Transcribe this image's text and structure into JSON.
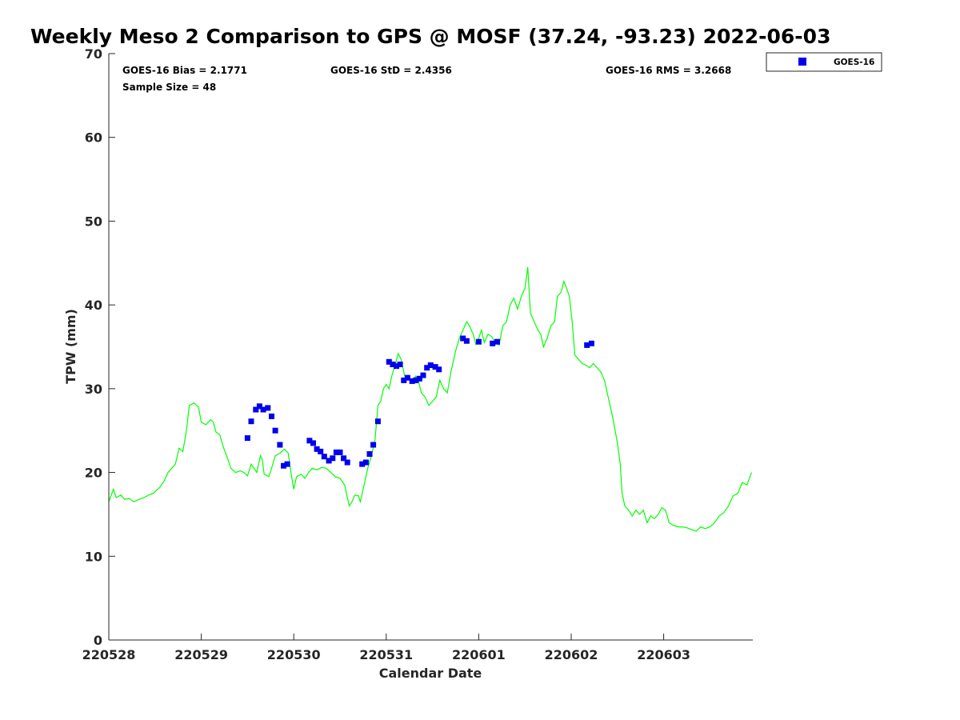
{
  "chart_data": {
    "type": "scatter",
    "title": "Weekly Meso 2 Comparison to GPS @ MOSF (37.24, -93.23) 2022-06-03",
    "xlabel": "Calendar Date",
    "ylabel": "TPW (mm)",
    "xlim": [
      0,
      6.95
    ],
    "ylim": [
      0,
      70
    ],
    "x_unit": "days since 220528",
    "x_ticks": [
      {
        "value": 0,
        "label": "220528"
      },
      {
        "value": 1,
        "label": "220529"
      },
      {
        "value": 2,
        "label": "220530"
      },
      {
        "value": 3,
        "label": "220531"
      },
      {
        "value": 4,
        "label": "220601"
      },
      {
        "value": 5,
        "label": "220602"
      },
      {
        "value": 6,
        "label": "220603"
      }
    ],
    "y_ticks": [
      0,
      10,
      20,
      30,
      40,
      50,
      60,
      70
    ],
    "grid": false,
    "legend": {
      "position": "outside-top-right",
      "entries": [
        "GOES-16"
      ]
    },
    "stats": {
      "bias": "GOES-16 Bias = 2.1771",
      "std": "GOES-16 StD = 2.4356",
      "rms": "GOES-16 RMS = 3.2668",
      "sample_size": "Sample Size = 48"
    },
    "series": [
      {
        "name": "GPS",
        "kind": "line",
        "color": "#00ff00",
        "points": [
          [
            0.0,
            16.5
          ],
          [
            0.05,
            18.0
          ],
          [
            0.08,
            17.0
          ],
          [
            0.13,
            17.3
          ],
          [
            0.17,
            16.8
          ],
          [
            0.22,
            16.9
          ],
          [
            0.27,
            16.5
          ],
          [
            0.33,
            16.8
          ],
          [
            0.38,
            17.0
          ],
          [
            0.43,
            17.3
          ],
          [
            0.48,
            17.5
          ],
          [
            0.55,
            18.2
          ],
          [
            0.6,
            19.0
          ],
          [
            0.64,
            20.0
          ],
          [
            0.68,
            20.5
          ],
          [
            0.72,
            21.0
          ],
          [
            0.76,
            22.9
          ],
          [
            0.8,
            22.5
          ],
          [
            0.84,
            25.0
          ],
          [
            0.87,
            28.0
          ],
          [
            0.92,
            28.3
          ],
          [
            0.97,
            27.8
          ],
          [
            1.0,
            26.0
          ],
          [
            1.05,
            25.7
          ],
          [
            1.1,
            26.3
          ],
          [
            1.13,
            26.0
          ],
          [
            1.16,
            24.8
          ],
          [
            1.2,
            24.5
          ],
          [
            1.24,
            23.0
          ],
          [
            1.28,
            21.8
          ],
          [
            1.32,
            20.5
          ],
          [
            1.37,
            20.0
          ],
          [
            1.42,
            20.2
          ],
          [
            1.46,
            20.0
          ],
          [
            1.5,
            19.6
          ],
          [
            1.54,
            21.0
          ],
          [
            1.6,
            20.0
          ],
          [
            1.64,
            22.0
          ],
          [
            1.66,
            21.5
          ],
          [
            1.68,
            19.8
          ],
          [
            1.73,
            19.5
          ],
          [
            1.76,
            20.5
          ],
          [
            1.8,
            22.0
          ],
          [
            1.85,
            22.3
          ],
          [
            1.9,
            22.8
          ],
          [
            1.94,
            22.3
          ],
          [
            1.97,
            20.0
          ],
          [
            2.0,
            18.0
          ],
          [
            2.03,
            19.5
          ],
          [
            2.08,
            19.8
          ],
          [
            2.12,
            19.3
          ],
          [
            2.16,
            20.0
          ],
          [
            2.2,
            20.5
          ],
          [
            2.25,
            20.3
          ],
          [
            2.3,
            20.6
          ],
          [
            2.35,
            20.5
          ],
          [
            2.4,
            20.0
          ],
          [
            2.45,
            19.5
          ],
          [
            2.5,
            19.3
          ],
          [
            2.55,
            18.5
          ],
          [
            2.58,
            17.0
          ],
          [
            2.6,
            16.0
          ],
          [
            2.63,
            16.5
          ],
          [
            2.66,
            17.3
          ],
          [
            2.7,
            17.2
          ],
          [
            2.72,
            16.5
          ],
          [
            2.76,
            18.5
          ],
          [
            2.8,
            20.5
          ],
          [
            2.84,
            22.0
          ],
          [
            2.88,
            24.0
          ],
          [
            2.91,
            28.0
          ],
          [
            2.94,
            28.5
          ],
          [
            2.97,
            30.0
          ],
          [
            3.0,
            30.5
          ],
          [
            3.03,
            30.0
          ],
          [
            3.06,
            31.5
          ],
          [
            3.1,
            33.0
          ],
          [
            3.13,
            34.2
          ],
          [
            3.16,
            33.5
          ],
          [
            3.2,
            31.5
          ],
          [
            3.24,
            31.3
          ],
          [
            3.28,
            31.0
          ],
          [
            3.32,
            31.5
          ],
          [
            3.35,
            30.8
          ],
          [
            3.38,
            29.5
          ],
          [
            3.42,
            29.0
          ],
          [
            3.46,
            28.0
          ],
          [
            3.5,
            28.5
          ],
          [
            3.54,
            29.0
          ],
          [
            3.58,
            31.0
          ],
          [
            3.62,
            30.0
          ],
          [
            3.66,
            29.5
          ],
          [
            3.7,
            32.0
          ],
          [
            3.75,
            34.5
          ],
          [
            3.79,
            36.0
          ],
          [
            3.83,
            37.0
          ],
          [
            3.87,
            38.0
          ],
          [
            3.9,
            37.5
          ],
          [
            3.94,
            36.5
          ],
          [
            3.97,
            35.3
          ],
          [
            4.0,
            36.0
          ],
          [
            4.03,
            37.0
          ],
          [
            4.06,
            35.5
          ],
          [
            4.1,
            36.5
          ],
          [
            4.14,
            36.2
          ],
          [
            4.18,
            35.5
          ],
          [
            4.22,
            35.2
          ],
          [
            4.26,
            37.5
          ],
          [
            4.3,
            38.0
          ],
          [
            4.34,
            40.0
          ],
          [
            4.38,
            40.8
          ],
          [
            4.42,
            39.5
          ],
          [
            4.46,
            41.0
          ],
          [
            4.5,
            42.0
          ],
          [
            4.53,
            44.5
          ],
          [
            4.56,
            39.0
          ],
          [
            4.6,
            38.0
          ],
          [
            4.64,
            37.0
          ],
          [
            4.67,
            36.5
          ],
          [
            4.7,
            35.0
          ],
          [
            4.74,
            36.0
          ],
          [
            4.78,
            37.5
          ],
          [
            4.82,
            38.0
          ],
          [
            4.85,
            41.0
          ],
          [
            4.89,
            41.5
          ],
          [
            4.92,
            42.8
          ],
          [
            4.95,
            42.0
          ],
          [
            4.98,
            41.0
          ],
          [
            5.01,
            38.0
          ],
          [
            5.04,
            34.0
          ],
          [
            5.08,
            33.5
          ],
          [
            5.12,
            33.0
          ],
          [
            5.16,
            32.8
          ],
          [
            5.2,
            32.5
          ],
          [
            5.24,
            33.0
          ],
          [
            5.28,
            32.5
          ],
          [
            5.32,
            32.0
          ],
          [
            5.36,
            31.0
          ],
          [
            5.4,
            29.0
          ],
          [
            5.45,
            26.5
          ],
          [
            5.5,
            23.5
          ],
          [
            5.53,
            21.0
          ],
          [
            5.55,
            17.5
          ],
          [
            5.58,
            16.0
          ],
          [
            5.62,
            15.5
          ],
          [
            5.66,
            14.8
          ],
          [
            5.7,
            15.5
          ],
          [
            5.74,
            15.0
          ],
          [
            5.78,
            15.5
          ],
          [
            5.82,
            14.0
          ],
          [
            5.86,
            14.8
          ],
          [
            5.9,
            14.5
          ],
          [
            5.94,
            15.0
          ],
          [
            5.98,
            15.8
          ],
          [
            6.02,
            15.5
          ],
          [
            6.06,
            14.0
          ],
          [
            6.1,
            13.7
          ],
          [
            6.15,
            13.5
          ],
          [
            6.2,
            13.5
          ],
          [
            6.25,
            13.4
          ],
          [
            6.3,
            13.2
          ],
          [
            6.35,
            13.0
          ],
          [
            6.4,
            13.5
          ],
          [
            6.45,
            13.3
          ],
          [
            6.5,
            13.5
          ],
          [
            6.55,
            14.0
          ],
          [
            6.6,
            14.8
          ],
          [
            6.65,
            15.2
          ],
          [
            6.7,
            16.0
          ],
          [
            6.75,
            17.2
          ],
          [
            6.8,
            17.5
          ],
          [
            6.85,
            18.8
          ],
          [
            6.9,
            18.5
          ],
          [
            6.95,
            20.0
          ]
        ]
      },
      {
        "name": "GOES-16",
        "kind": "marker",
        "color": "#0000ee",
        "points": [
          [
            1.5,
            24.1
          ],
          [
            1.54,
            26.1
          ],
          [
            1.59,
            27.5
          ],
          [
            1.63,
            27.9
          ],
          [
            1.67,
            27.5
          ],
          [
            1.72,
            27.7
          ],
          [
            1.76,
            26.7
          ],
          [
            1.8,
            25.0
          ],
          [
            1.85,
            23.3
          ],
          [
            1.89,
            20.8
          ],
          [
            1.93,
            21.0
          ],
          [
            2.17,
            23.8
          ],
          [
            2.21,
            23.5
          ],
          [
            2.25,
            22.8
          ],
          [
            2.29,
            22.5
          ],
          [
            2.33,
            21.9
          ],
          [
            2.38,
            21.4
          ],
          [
            2.42,
            21.7
          ],
          [
            2.46,
            22.4
          ],
          [
            2.5,
            22.4
          ],
          [
            2.54,
            21.7
          ],
          [
            2.58,
            21.2
          ],
          [
            2.74,
            21.0
          ],
          [
            2.78,
            21.2
          ],
          [
            2.82,
            22.2
          ],
          [
            2.86,
            23.3
          ],
          [
            2.91,
            26.1
          ],
          [
            3.03,
            33.2
          ],
          [
            3.07,
            32.9
          ],
          [
            3.11,
            32.7
          ],
          [
            3.15,
            32.9
          ],
          [
            3.19,
            31.0
          ],
          [
            3.23,
            31.3
          ],
          [
            3.28,
            30.9
          ],
          [
            3.32,
            31.0
          ],
          [
            3.36,
            31.2
          ],
          [
            3.4,
            31.6
          ],
          [
            3.44,
            32.5
          ],
          [
            3.48,
            32.8
          ],
          [
            3.53,
            32.6
          ],
          [
            3.57,
            32.3
          ],
          [
            3.83,
            36.0
          ],
          [
            3.87,
            35.7
          ],
          [
            4.0,
            35.6
          ],
          [
            4.15,
            35.4
          ],
          [
            4.2,
            35.6
          ],
          [
            5.17,
            35.2
          ],
          [
            5.22,
            35.4
          ]
        ]
      }
    ]
  }
}
